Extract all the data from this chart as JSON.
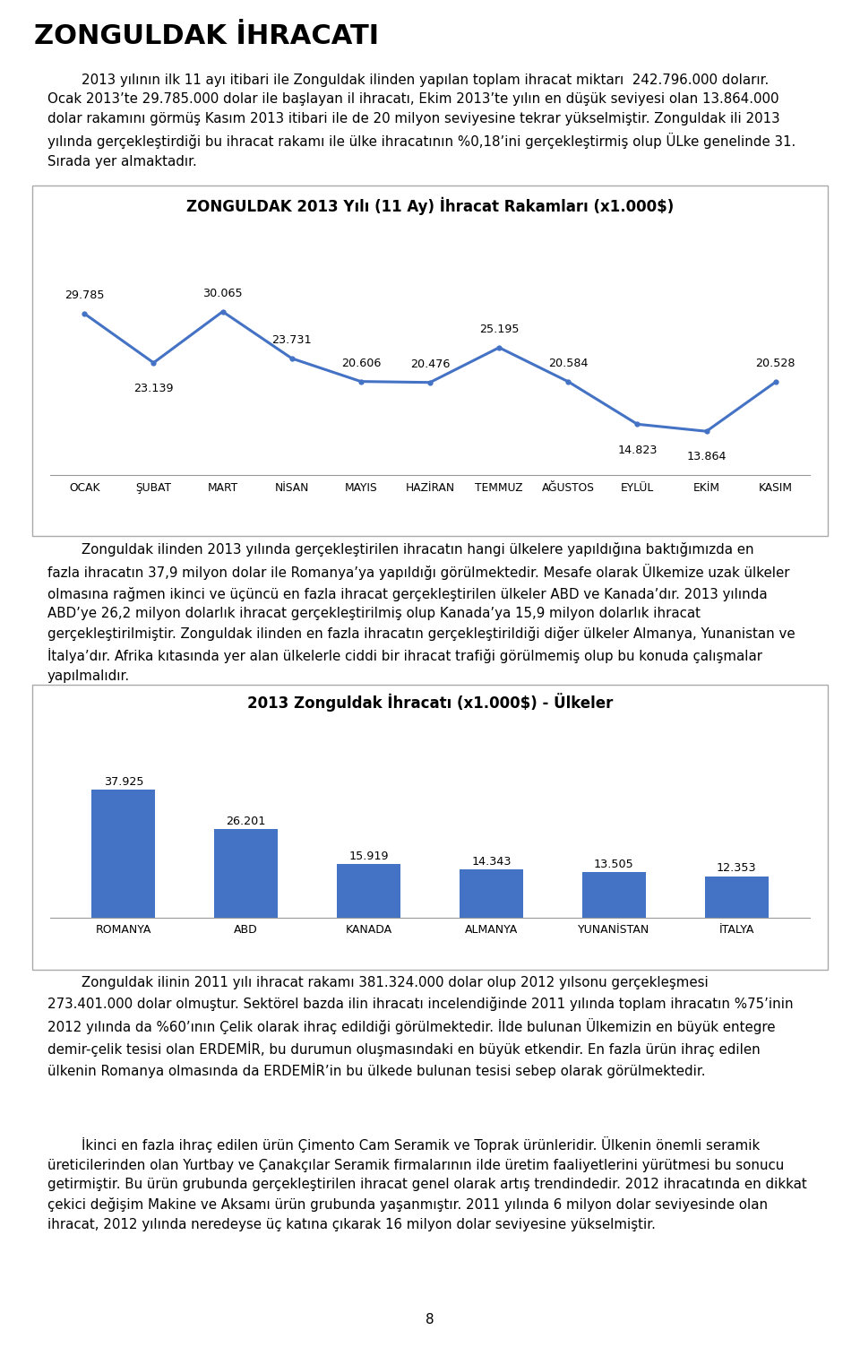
{
  "title": "ZONGULDAK İHRACATI",
  "chart1_title": "ZONGULDAK 2013 Yılı (11 Ay) İhracat Rakamları (x1.000$)",
  "chart1_months": [
    "OCAK",
    "ŞUBAT",
    "MART",
    "NİSAN",
    "MAYIS",
    "HAZİRAN",
    "TEMMUZ",
    "AĞUSTOS",
    "EYLÜL",
    "EKİM",
    "KASIM"
  ],
  "chart1_values": [
    29.785,
    23.139,
    30.065,
    23.731,
    20.606,
    20.476,
    25.195,
    20.584,
    14.823,
    13.864,
    20.528
  ],
  "chart1_labels": [
    "29.785",
    "23.139",
    "30.065",
    "23.731",
    "20.606",
    "20.476",
    "25.195",
    "20.584",
    "14.823",
    "13.864",
    "20.528"
  ],
  "chart1_label_above": [
    true,
    false,
    true,
    true,
    true,
    true,
    true,
    true,
    false,
    false,
    true
  ],
  "chart1_line_color": "#4472C4",
  "chart2_title": "2013 Zonguldak İhracatı (x1.000$) - Ülkeler",
  "chart2_countries": [
    "ROMANYA",
    "ABD",
    "KANADA",
    "ALMANYA",
    "YUNANİSTAN",
    "İTALYA"
  ],
  "chart2_values": [
    37.925,
    26.201,
    15.919,
    14.343,
    13.505,
    12.353
  ],
  "chart2_labels": [
    "37.925",
    "26.201",
    "15.919",
    "14.343",
    "13.505",
    "12.353"
  ],
  "chart2_bar_color": "#4472C4",
  "para1_indent": "        ",
  "para1_line1": "2013 yılının ilk 11 ayı itibari ile Zonguldak ilinden yapılan toplam ihracat miktarı  242.796.000 dolarır.",
  "para1_line2": "Ocak 2013’te 29.785.000 dolar ile başlayan il ihracatı, Ekim 2013’te yılın en düşük seviyesi olan 13.864.000",
  "para1_line3": "dolar rakamını görmüş Kasım 2013 itibari ile de 20 milyon seviyesine tekrar yükselmiştir. Zonguldak ili 2013",
  "para1_line4": "yılında gerçekleştirdiği bu ihracat rakamı ile ülke ihracatının %0,18’ini gerçekleştirmiş olup ÜLke genelinde 31.",
  "para1_line5": "Sırada yer almaktadır.",
  "para2_line1": "        Zonguldak ilinden 2013 yılında gerçekleştirilen ihracatın hangi ülkelere yapıldığına baktığımızda en",
  "para2_line2": "fazla ihracatın 37,9 milyon dolar ile Romanya’ya yapıldığı görülmektedir. Mesafe olarak Ülkemize uzak ülkeler",
  "para2_line3": "olmasına rağmen ikinci ve üçüncü en fazla ihracat gerçekleştirilen ülkeler ABD ve Kanada’dır. 2013 yılında",
  "para2_line4": "ABD’ye 26,2 milyon dolarlık ihracat gerçekleştirilmiş olup Kanada’ya 15,9 milyon dolarlık ihracat",
  "para2_line5": "gerçekleştirilmiştir. Zonguldak ilinden en fazla ihracatın gerçekleştirildiği diğer ülkeler Almanya, Yunanistan ve",
  "para2_line6": "İtalya’dır. Afrika kıtasında yer alan ülkelerle ciddi bir ihracat trafiği görülmemiş olup bu konuda çalışmalar",
  "para2_line7": "yapılmalıdır.",
  "para3_line1": "        Zonguldak ilinin 2011 yılı ihracat rakamı 381.324.000 dolar olup 2012 yılsonu gerçekleşmesi",
  "para3_line2": "273.401.000 dolar olmuştur. Sektörel bazda ilin ihracatı incelendiğinde 2011 yılında toplam ihracatın %75’inin",
  "para3_line3": "2012 yılında da %60’ının Çelik olarak ihraç edildiği görülmektedir. İlde bulunan Ülkemizin en büyük entegre",
  "para3_line4": "demir-çelik tesisi olan ERDEMİR, bu durumun oluşmasındaki en büyük etkendir. En fazla ürün ihraç edilen",
  "para3_line5": "ülkenin Romanya olmasında da ERDEMİR’in bu ülkede bulunan tesisi sebep olarak görülmektedir.",
  "para4_line1": "        İkinci en fazla ihraç edilen ürün Çimento Cam Seramik ve Toprak ürünleridir. Ülkenin önemli seramik",
  "para4_line2": "üreticilerinden olan Yurtbay ve Çanakçılar Seramik firmalarının ilde üretim faaliyetlerini yürütmesi bu sonucu",
  "para4_line3": "getirmiştir. Bu ürün grubunda gerçekleştirilen ihracat genel olarak artış trendindedir. 2012 ihracatında en dikkat",
  "para4_line4": "çekici değişim Makine ve Aksamı ürün grubunda yaşanmıştır. 2011 yılında 6 milyon dolar seviyesinde olan",
  "para4_line5": "ihracat, 2012 yılında neredeyse üç katına çıkarak 16 milyon dolar seviyesine yükselmiştir.",
  "page_number": "8",
  "background_color": "#ffffff",
  "text_color": "#000000",
  "box_border_color": "#aaaaaa",
  "title_fontsize": 22,
  "body_fontsize": 10.8,
  "chart_title_fontsize": 12
}
